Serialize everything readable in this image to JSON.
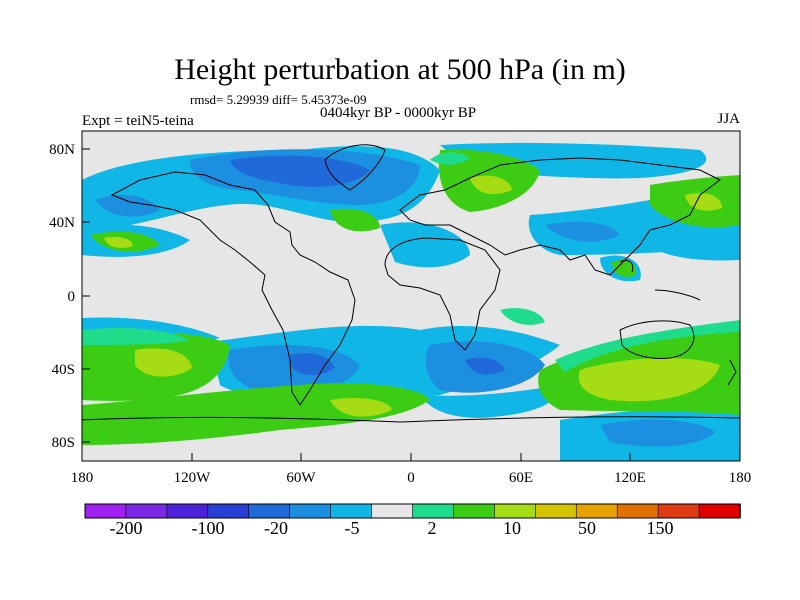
{
  "title": "Height perturbation at 500 hPa (in m)",
  "stats": "rmsd= 5.29939 diff= 5.45373e-09",
  "period": "0404kyr BP - 0000kyr BP",
  "experiment": "Expt = teiN5-teina",
  "season": "JJA",
  "lat_labels": [
    "80N",
    "40N",
    "0",
    "40S",
    "80S"
  ],
  "lon_labels": [
    "180",
    "120W",
    "60W",
    "0",
    "60E",
    "120E",
    "180"
  ],
  "colorbar": {
    "colors": [
      "#a020f0",
      "#7a2ae6",
      "#4b22d8",
      "#2a3fd6",
      "#1f6ad8",
      "#1c8fe0",
      "#10b7e6",
      "#e6e6e6",
      "#1fdc8c",
      "#3ccc14",
      "#a6dc14",
      "#d2c400",
      "#e6a300",
      "#e07000",
      "#e03c14",
      "#e00000"
    ],
    "labels": [
      "-200",
      "-100",
      "-20",
      "-5",
      "2",
      "10",
      "50",
      "150"
    ]
  }
}
